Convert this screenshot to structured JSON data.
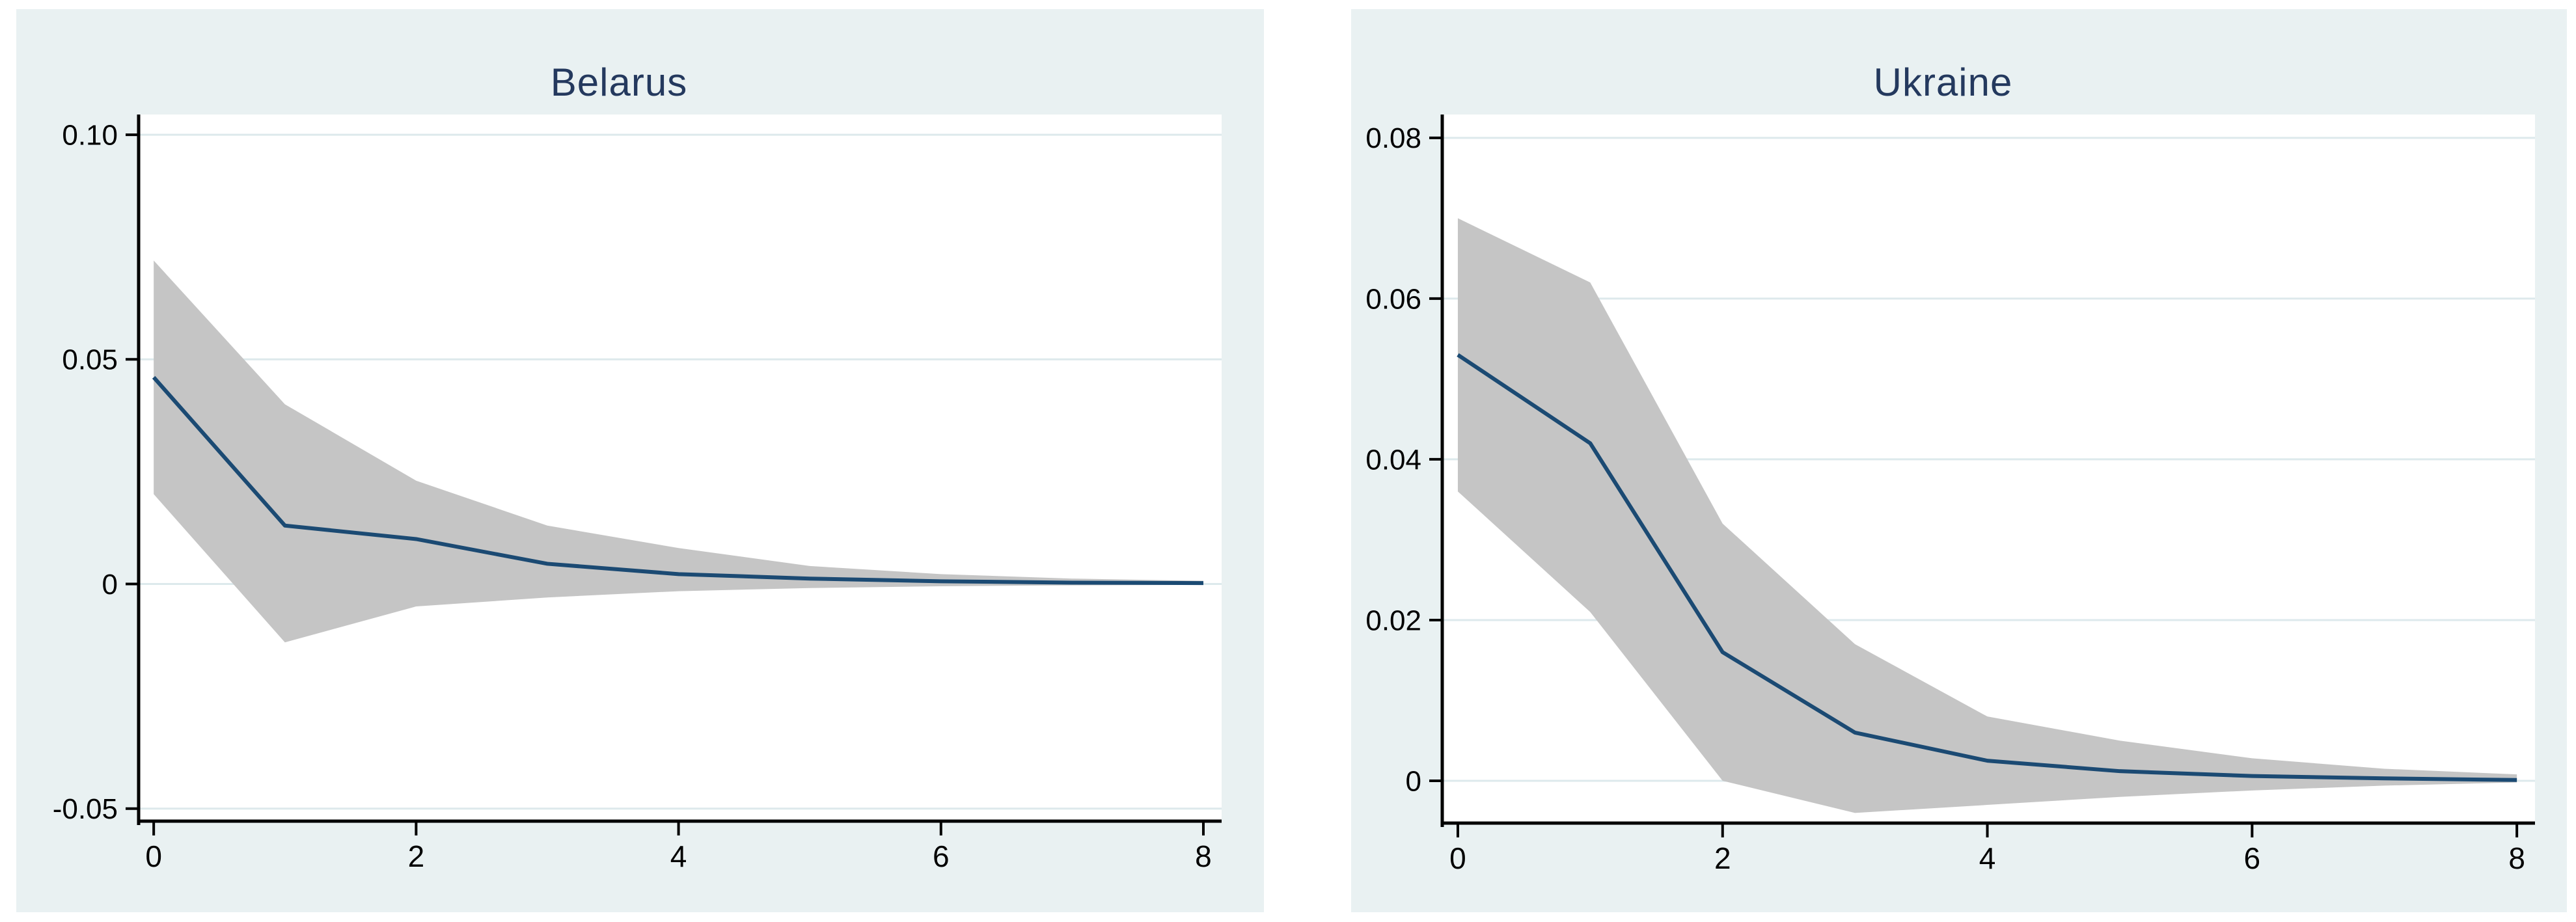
{
  "style": {
    "page_background": "#ffffff",
    "panel_background": "#e9f1f2",
    "plot_background": "#ffffff",
    "grid_color": "#dde9ec",
    "band_color": "#c5c5c5",
    "line_color": "#1b4a73",
    "axis_color": "#000000",
    "title_color": "#24395e",
    "tick_label_color": "#000000"
  },
  "chart_data": [
    {
      "type": "line",
      "title": "Belarus",
      "x": [
        0,
        1,
        2,
        3,
        4,
        5,
        6,
        7,
        8
      ],
      "series": [
        {
          "name": "irf",
          "values": [
            0.046,
            0.013,
            0.01,
            0.0045,
            0.0022,
            0.0012,
            0.0006,
            0.0003,
            0.0002
          ]
        },
        {
          "name": "band_upper",
          "values": [
            0.072,
            0.04,
            0.023,
            0.013,
            0.008,
            0.004,
            0.0022,
            0.0012,
            0.0007
          ]
        },
        {
          "name": "band_lower",
          "values": [
            0.02,
            -0.013,
            -0.005,
            -0.003,
            -0.0016,
            -0.0009,
            -0.0005,
            -0.0003,
            -0.0002
          ]
        }
      ],
      "xlabel": "",
      "ylabel": "",
      "xlim": [
        -0.105,
        8.139
      ],
      "ylim": [
        -0.0525,
        0.1045
      ],
      "grid": "horizontal",
      "legend": "none",
      "yticks": [
        {
          "v": -0.05,
          "label": "-0.05"
        },
        {
          "v": 0,
          "label": "0"
        },
        {
          "v": 0.05,
          "label": "0.05"
        },
        {
          "v": 0.1,
          "label": "0.10"
        }
      ],
      "xticks": [
        {
          "v": 0,
          "label": "0"
        },
        {
          "v": 2,
          "label": "2"
        },
        {
          "v": 4,
          "label": "4"
        },
        {
          "v": 6,
          "label": "6"
        },
        {
          "v": 8,
          "label": "8"
        }
      ]
    },
    {
      "type": "line",
      "title": "Ukraine",
      "x": [
        0,
        1,
        2,
        3,
        4,
        5,
        6,
        7,
        8
      ],
      "series": [
        {
          "name": "irf",
          "values": [
            0.053,
            0.042,
            0.016,
            0.006,
            0.0025,
            0.0012,
            0.0006,
            0.0003,
            0.0001
          ]
        },
        {
          "name": "band_upper",
          "values": [
            0.07,
            0.062,
            0.032,
            0.017,
            0.008,
            0.005,
            0.0028,
            0.0015,
            0.0008
          ]
        },
        {
          "name": "band_lower",
          "values": [
            0.036,
            0.021,
            0.0,
            -0.004,
            -0.003,
            -0.002,
            -0.0012,
            -0.0006,
            -0.0002
          ]
        }
      ],
      "xlabel": "",
      "ylabel": "",
      "xlim": [
        -0.108,
        8.137
      ],
      "ylim": [
        -0.0051,
        0.0829
      ],
      "grid": "horizontal",
      "legend": "none",
      "yticks": [
        {
          "v": 0,
          "label": "0"
        },
        {
          "v": 0.02,
          "label": "0.02"
        },
        {
          "v": 0.04,
          "label": "0.04"
        },
        {
          "v": 0.06,
          "label": "0.06"
        },
        {
          "v": 0.08,
          "label": "0.08"
        }
      ],
      "xticks": [
        {
          "v": 0,
          "label": "0"
        },
        {
          "v": 2,
          "label": "2"
        },
        {
          "v": 4,
          "label": "4"
        },
        {
          "v": 6,
          "label": "6"
        },
        {
          "v": 8,
          "label": "8"
        }
      ]
    }
  ]
}
